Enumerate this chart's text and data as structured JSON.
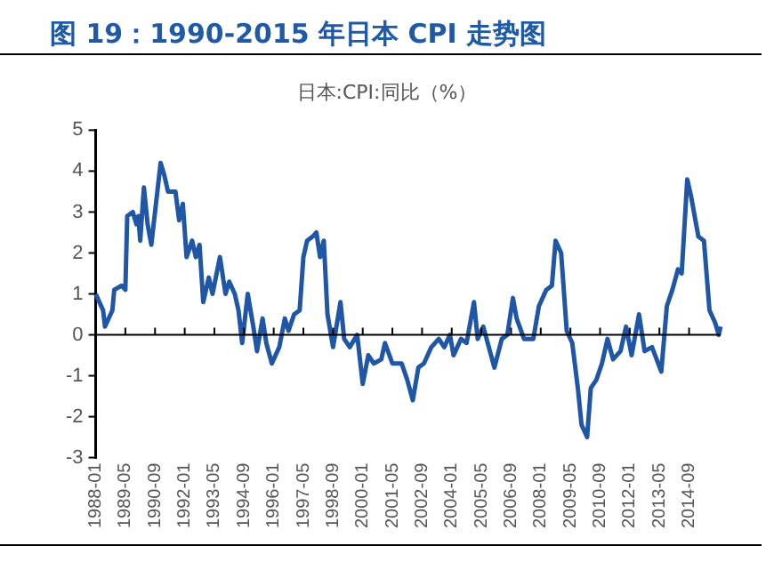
{
  "chart_data": {
    "type": "line",
    "title": "图 19：1990-2015 年日本 CPI 走势图",
    "subtitle": "日本:CPI:同比（%）",
    "x": [
      "1988-01",
      "1988-05",
      "1988-06",
      "1988-10",
      "1988-11",
      "1989-03",
      "1989-05",
      "1989-06",
      "1989-09",
      "1989-11",
      "1989-12",
      "1990-01",
      "1990-03",
      "1990-05",
      "1990-07",
      "1990-09",
      "1990-12",
      "1991-02",
      "1991-04",
      "1991-08",
      "1991-10",
      "1991-12",
      "1992-02",
      "1992-05",
      "1992-07",
      "1992-09",
      "1992-11",
      "1993-02",
      "1993-04",
      "1993-08",
      "1993-11",
      "1994-01",
      "1994-04",
      "1994-06",
      "1994-08",
      "1994-11",
      "1995-02",
      "1995-04",
      "1995-07",
      "1995-09",
      "1995-12",
      "1996-04",
      "1996-07",
      "1996-09",
      "1996-12",
      "1997-03",
      "1997-05",
      "1997-07",
      "1997-10",
      "1997-12",
      "1998-02",
      "1998-04",
      "1998-06",
      "1998-09",
      "1999-01",
      "1999-03",
      "1999-06",
      "1999-10",
      "2000-01",
      "2000-04",
      "2000-07",
      "2000-11",
      "2001-01",
      "2001-05",
      "2001-10",
      "2002-01",
      "2002-04",
      "2002-07",
      "2002-10",
      "2003-02",
      "2003-06",
      "2003-09",
      "2003-12",
      "2004-02",
      "2004-06",
      "2004-09",
      "2005-01",
      "2005-03",
      "2005-06",
      "2005-09",
      "2005-12",
      "2006-04",
      "2006-07",
      "2006-10",
      "2006-12",
      "2007-04",
      "2007-09",
      "2007-12",
      "2008-04",
      "2008-07",
      "2008-09",
      "2008-12",
      "2009-03",
      "2009-06",
      "2009-09",
      "2009-11",
      "2010-02",
      "2010-04",
      "2010-07",
      "2010-10",
      "2011-01",
      "2011-04",
      "2011-08",
      "2011-11",
      "2012-02",
      "2012-06",
      "2012-09",
      "2013-01",
      "2013-06",
      "2013-09",
      "2013-12",
      "2014-03",
      "2014-05",
      "2014-08",
      "2014-10",
      "2015-02",
      "2015-05",
      "2015-08",
      "2015-11",
      "2016-01",
      "2016-02"
    ],
    "series": [
      {
        "color": "#1f56a5",
        "values": [
          1.0,
          0.6,
          0.2,
          0.6,
          1.1,
          1.2,
          1.1,
          2.9,
          3.0,
          2.7,
          2.9,
          2.3,
          3.6,
          2.7,
          2.2,
          3.0,
          4.2,
          3.9,
          3.5,
          3.5,
          2.8,
          3.2,
          1.9,
          2.3,
          1.9,
          2.2,
          0.8,
          1.4,
          1.0,
          1.9,
          1.0,
          1.3,
          1.0,
          0.6,
          -0.2,
          1.0,
          0.2,
          -0.4,
          0.4,
          -0.2,
          -0.7,
          -0.3,
          0.4,
          0.1,
          0.5,
          0.6,
          1.9,
          2.3,
          2.4,
          2.5,
          1.9,
          2.3,
          0.5,
          -0.3,
          0.8,
          -0.1,
          -0.3,
          0.0,
          -1.2,
          -0.5,
          -0.7,
          -0.6,
          -0.2,
          -0.7,
          -0.7,
          -1.1,
          -1.6,
          -0.8,
          -0.7,
          -0.3,
          -0.1,
          -0.3,
          0.0,
          -0.5,
          -0.1,
          -0.2,
          0.8,
          -0.1,
          0.2,
          -0.3,
          -0.8,
          -0.1,
          0.0,
          0.9,
          0.4,
          -0.1,
          -0.1,
          0.7,
          1.1,
          1.2,
          2.3,
          2.0,
          0.1,
          -0.2,
          -1.3,
          -2.2,
          -2.5,
          -1.3,
          -1.1,
          -0.7,
          -0.1,
          -0.6,
          -0.4,
          0.2,
          -0.5,
          0.5,
          -0.4,
          -0.3,
          -0.9,
          0.7,
          1.1,
          1.6,
          1.5,
          3.8,
          3.4,
          2.4,
          2.3,
          0.6,
          0.3,
          0.0,
          0.2
        ]
      }
    ],
    "xlim": [
      "1988-01",
      "2016-02"
    ],
    "xticks": [
      "1988-01",
      "1989-05",
      "1990-09",
      "1992-01",
      "1993-05",
      "1994-09",
      "1996-01",
      "1997-05",
      "1998-09",
      "2000-01",
      "2001-05",
      "2002-09",
      "2004-01",
      "2005-05",
      "2006-09",
      "2008-01",
      "2009-05",
      "2010-09",
      "2012-01",
      "2013-05",
      "2014-09"
    ],
    "ylim": [
      -3,
      5
    ],
    "yticks": [
      -3,
      -2,
      -1,
      0,
      1,
      2,
      3,
      4,
      5
    ],
    "ref_lines": [
      {
        "axis": "y",
        "value": 0,
        "color": "#000000"
      }
    ],
    "grid": false,
    "legend": false,
    "marker": "none",
    "line_style": "solid"
  }
}
